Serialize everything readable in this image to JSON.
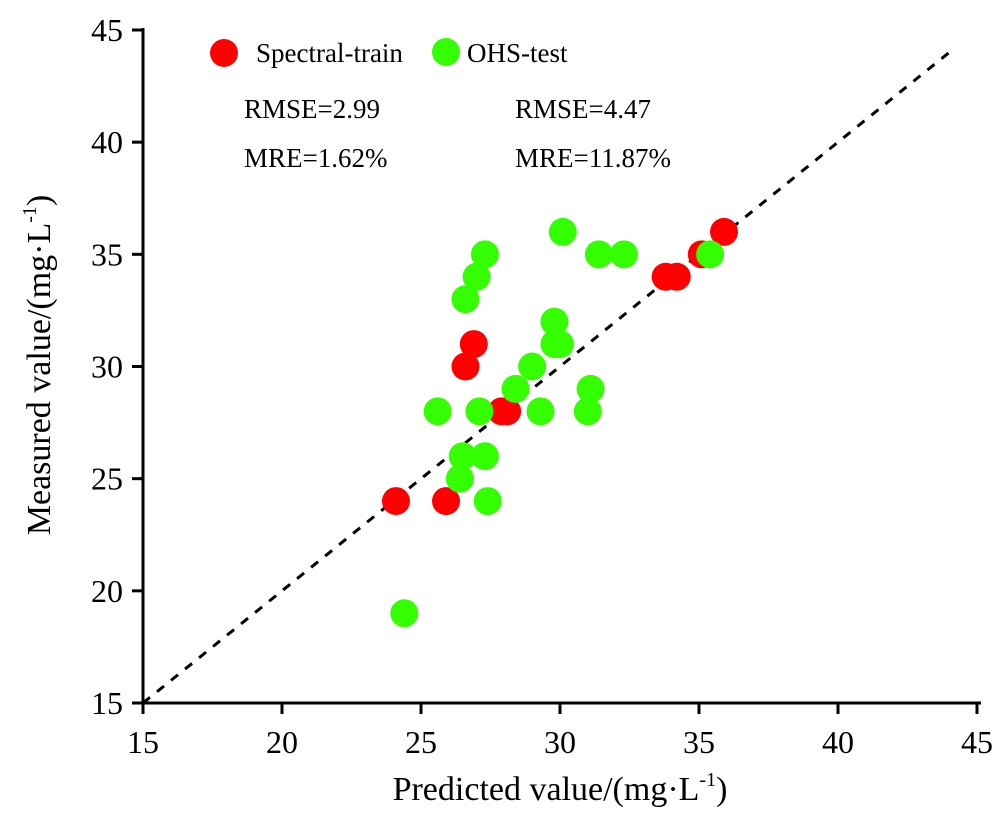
{
  "chart_data": {
    "type": "scatter",
    "title": "",
    "xlabel": "Predicted value/(mg·L",
    "xlabel_sup": "-1",
    "xlabel_end": ")",
    "ylabel": "Measured value/(mg·L",
    "ylabel_sup": "-1",
    "ylabel_end": ")",
    "xlim": [
      15,
      45
    ],
    "ylim": [
      15,
      45
    ],
    "xticks": [
      "15",
      "20",
      "25",
      "30",
      "35",
      "40",
      "45"
    ],
    "yticks": [
      "15",
      "20",
      "25",
      "30",
      "35",
      "40",
      "45"
    ],
    "grid": false,
    "legend_position": "top-left",
    "reference_line": {
      "type": "1:1",
      "style": "dashed",
      "color": "#000000",
      "from": [
        15,
        15
      ],
      "to": [
        44,
        44
      ]
    },
    "series": [
      {
        "name": "Spectral-train",
        "color": "#ff0000",
        "rmse_label": "RMSE=2.99",
        "mre_label": "MRE=1.62%",
        "points": [
          [
            24.1,
            24
          ],
          [
            25.9,
            24
          ],
          [
            27.9,
            28
          ],
          [
            28.1,
            28
          ],
          [
            26.6,
            30
          ],
          [
            26.9,
            31
          ],
          [
            33.8,
            34
          ],
          [
            34.2,
            34
          ],
          [
            35.1,
            35
          ],
          [
            35.9,
            36
          ]
        ]
      },
      {
        "name": "OHS-test",
        "color": "#33ff00",
        "rmse_label": "RMSE=4.47",
        "mre_label": "MRE=11.87%",
        "points": [
          [
            24.4,
            19
          ],
          [
            27.4,
            24
          ],
          [
            26.4,
            25
          ],
          [
            26.5,
            26
          ],
          [
            27.3,
            26
          ],
          [
            25.6,
            28
          ],
          [
            27.1,
            28
          ],
          [
            29.3,
            28
          ],
          [
            31.0,
            28
          ],
          [
            28.4,
            29
          ],
          [
            31.1,
            29
          ],
          [
            29.0,
            30
          ],
          [
            29.8,
            31
          ],
          [
            30.0,
            31
          ],
          [
            29.8,
            32
          ],
          [
            26.6,
            33
          ],
          [
            27.0,
            34
          ],
          [
            27.3,
            35
          ],
          [
            31.4,
            35
          ],
          [
            32.3,
            35
          ],
          [
            35.4,
            35
          ],
          [
            30.1,
            36
          ]
        ]
      }
    ]
  }
}
